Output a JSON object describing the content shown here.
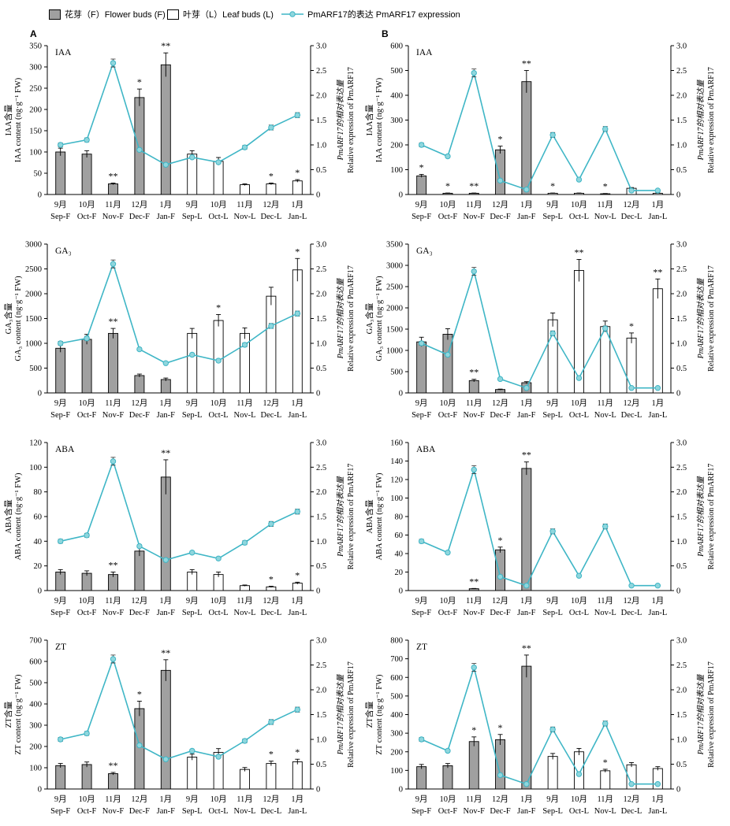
{
  "legend": {
    "flower_label": "花芽（F）Flower buds (F)",
    "leaf_label": "叶芽（L）Leaf buds (L)",
    "expr_label": "PmARF17的表达  PmARF17 expression"
  },
  "panel_labels": {
    "a": "A",
    "b": "B"
  },
  "colors": {
    "flower_fill": "#a0a0a0",
    "leaf_fill": "#ffffff",
    "line": "#3fb6c6",
    "marker_fill": "#8fd6dd"
  },
  "chart_data": [
    {
      "type": "bar+line",
      "panel": "A",
      "tag": "IAA",
      "ylabel_zh": "IAA含量",
      "ylabel_en": "IAA content (ng·g⁻¹ FW)",
      "y2label_zh": "PmARF17的相对表达量",
      "y2label_en": "Relative expression of PmARF17",
      "ylim": [
        0,
        350
      ],
      "yticks": [
        0,
        50,
        100,
        150,
        200,
        250,
        300,
        350
      ],
      "y2lim": [
        0,
        3.0
      ],
      "y2ticks": [
        "0",
        "0.5",
        "1.0",
        "1.5",
        "2.0",
        "2.5",
        "3.0"
      ],
      "xtick_top": [
        "9月",
        "10月",
        "11月",
        "12月",
        "1月",
        "9月",
        "10月",
        "11月",
        "12月",
        "1月"
      ],
      "xtick_bottom": [
        "Sep-F",
        "Oct-F",
        "Nov-F",
        "Dec-F",
        "Jan-F",
        "Sep-L",
        "Oct-L",
        "Nov-L",
        "Dec-L",
        "Jan-L"
      ],
      "bars": [
        100,
        95,
        25,
        228,
        305,
        95,
        78,
        23,
        25,
        32
      ],
      "bar_err": [
        9,
        8,
        2,
        20,
        28,
        8,
        9,
        2,
        2,
        3
      ],
      "expression": [
        1.0,
        1.1,
        2.65,
        0.9,
        0.6,
        0.75,
        0.65,
        0.95,
        1.35,
        1.6
      ],
      "expr_err": [
        0.04,
        0.04,
        0.08,
        0.03,
        0.02,
        0.03,
        0.03,
        0.04,
        0.05,
        0.05
      ],
      "significance": [
        "",
        "",
        "**",
        "*",
        "**",
        "",
        "",
        "",
        "*",
        "*"
      ]
    },
    {
      "type": "bar+line",
      "panel": "B",
      "tag": "IAA",
      "ylabel_zh": "IAA含量",
      "ylabel_en": "IAA content (ng·g⁻¹ FW)",
      "y2label_zh": "PmARF17的相对表达量",
      "y2label_en": "Relative expression of PmARF17",
      "ylim": [
        0,
        600
      ],
      "yticks": [
        0,
        100,
        200,
        300,
        400,
        500,
        600
      ],
      "y2lim": [
        0,
        3.0
      ],
      "y2ticks": [
        "0",
        "0.5",
        "1.0",
        "1.5",
        "2.0",
        "2.5",
        "3.0"
      ],
      "xtick_top": [
        "9月",
        "10月",
        "11月",
        "12月",
        "1月",
        "9月",
        "10月",
        "11月",
        "12月",
        "1月"
      ],
      "xtick_bottom": [
        "Sep-F",
        "Oct-F",
        "Nov-F",
        "Dec-F",
        "Jan-F",
        "Sep-L",
        "Oct-L",
        "Nov-L",
        "Dec-L",
        "Jan-L"
      ],
      "bars": [
        75,
        5,
        5,
        180,
        455,
        5,
        5,
        3,
        25,
        5
      ],
      "bar_err": [
        6,
        1,
        1,
        15,
        45,
        1,
        1,
        1,
        3,
        1
      ],
      "expression": [
        1.0,
        0.77,
        2.45,
        0.28,
        0.1,
        1.2,
        0.3,
        1.32,
        0.08,
        0.08
      ],
      "expr_err": [
        0.04,
        0.03,
        0.08,
        0.02,
        0.02,
        0.05,
        0.02,
        0.05,
        0.01,
        0.01
      ],
      "significance": [
        "*",
        "*",
        "**",
        "*",
        "**",
        "*",
        "",
        "*",
        "",
        ""
      ]
    },
    {
      "type": "bar+line",
      "panel": "A",
      "tag": "GA₃",
      "ylabel_zh": "GA₃含量",
      "ylabel_en": "GA₃ content (ng·g⁻¹ FW)",
      "y2label_zh": "PmARF17的相对表达量",
      "y2label_en": "Relative expression of PmARF17",
      "ylim": [
        0,
        3000
      ],
      "yticks": [
        0,
        500,
        1000,
        1500,
        2000,
        2500,
        3000
      ],
      "y2lim": [
        0,
        3.0
      ],
      "y2ticks": [
        "0",
        "0.5",
        "1.0",
        "1.5",
        "2.0",
        "2.5",
        "3.0"
      ],
      "xtick_top": [
        "9月",
        "10月",
        "11月",
        "12月",
        "1月",
        "9月",
        "10月",
        "11月",
        "12月",
        "1月"
      ],
      "xtick_bottom": [
        "Sep-F",
        "Oct-F",
        "Nov-F",
        "Dec-F",
        "Jan-F",
        "Sep-L",
        "Oct-L",
        "Nov-L",
        "Dec-L",
        "Jan-L"
      ],
      "bars": [
        900,
        1080,
        1200,
        350,
        270,
        1200,
        1460,
        1200,
        1950,
        2480
      ],
      "bar_err": [
        80,
        100,
        100,
        30,
        30,
        100,
        120,
        110,
        180,
        230
      ],
      "expression": [
        1.0,
        1.1,
        2.6,
        0.88,
        0.6,
        0.77,
        0.65,
        0.97,
        1.35,
        1.6
      ],
      "expr_err": [
        0.04,
        0.04,
        0.08,
        0.03,
        0.02,
        0.03,
        0.03,
        0.04,
        0.05,
        0.05
      ],
      "significance": [
        "",
        "",
        "**",
        "",
        "",
        "",
        "*",
        "",
        "",
        "*"
      ]
    },
    {
      "type": "bar+line",
      "panel": "B",
      "tag": "GA₃",
      "ylabel_zh": "GA₃含量",
      "ylabel_en": "GA₃ content (ng·g⁻¹ FW)",
      "y2label_zh": "PmARF17的相对表达量",
      "y2label_en": "Relative expression of PmARF17",
      "ylim": [
        0,
        3500
      ],
      "yticks": [
        0,
        500,
        1000,
        1500,
        2000,
        2500,
        3000,
        3500
      ],
      "y2lim": [
        0,
        3.0
      ],
      "y2ticks": [
        "0",
        "0.5",
        "1.0",
        "1.5",
        "2.0",
        "2.5",
        "3.0"
      ],
      "xtick_top": [
        "9月",
        "10月",
        "11月",
        "12月",
        "1月",
        "9月",
        "10月",
        "11月",
        "12月",
        "1月"
      ],
      "xtick_bottom": [
        "Sep-F",
        "Oct-F",
        "Nov-F",
        "Dec-F",
        "Jan-F",
        "Sep-L",
        "Oct-L",
        "Nov-L",
        "Dec-L",
        "Jan-L"
      ],
      "bars": [
        1200,
        1380,
        290,
        80,
        240,
        1720,
        2880,
        1560,
        1290,
        2450
      ],
      "bar_err": [
        110,
        130,
        30,
        10,
        25,
        160,
        260,
        130,
        120,
        230
      ],
      "expression": [
        1.0,
        0.77,
        2.45,
        0.28,
        0.1,
        1.2,
        0.3,
        1.3,
        0.1,
        0.1
      ],
      "expr_err": [
        0.04,
        0.03,
        0.08,
        0.02,
        0.02,
        0.05,
        0.02,
        0.05,
        0.01,
        0.01
      ],
      "significance": [
        "",
        "",
        "**",
        "",
        "",
        "",
        "**",
        "",
        "*",
        "**"
      ]
    },
    {
      "type": "bar+line",
      "panel": "A",
      "tag": "ABA",
      "ylabel_zh": "ABA含量",
      "ylabel_en": "ABA content (ng·g⁻¹ FW)",
      "y2label_zh": "PmARF17的相对表达量",
      "y2label_en": "Relative expression of PmARF17",
      "ylim": [
        0,
        120
      ],
      "yticks": [
        0,
        20,
        40,
        60,
        80,
        100,
        120
      ],
      "y2lim": [
        0,
        3.0
      ],
      "y2ticks": [
        "0",
        "0.5",
        "1.0",
        "1.5",
        "2.0",
        "2.5",
        "3.0"
      ],
      "xtick_top": [
        "9月",
        "10月",
        "11月",
        "12月",
        "1月",
        "9月",
        "10月",
        "11月",
        "12月",
        "1月"
      ],
      "xtick_bottom": [
        "Sep-F",
        "Oct-F",
        "Nov-F",
        "Dec-F",
        "Jan-F",
        "Sep-L",
        "Oct-L",
        "Nov-L",
        "Dec-L",
        "Jan-L"
      ],
      "bars": [
        15,
        14,
        13,
        32,
        92,
        15,
        13,
        4,
        3,
        6
      ],
      "bar_err": [
        2,
        2,
        2,
        4,
        14,
        2,
        2,
        0.5,
        0.5,
        0.8
      ],
      "expression": [
        1.0,
        1.12,
        2.62,
        0.9,
        0.62,
        0.77,
        0.65,
        0.97,
        1.35,
        1.6
      ],
      "expr_err": [
        0.04,
        0.04,
        0.08,
        0.03,
        0.02,
        0.03,
        0.03,
        0.04,
        0.05,
        0.05
      ],
      "significance": [
        "",
        "",
        "**",
        "",
        "**",
        "",
        "",
        "",
        "*",
        "*"
      ]
    },
    {
      "type": "bar+line",
      "panel": "B",
      "tag": "ABA",
      "ylabel_zh": "ABA含量",
      "ylabel_en": "ABA content (ng·g⁻¹ FW)",
      "y2label_zh": "PmARF17的相对表达量",
      "y2label_en": "Relative expression of PmARF17",
      "ylim": [
        0,
        160
      ],
      "yticks": [
        0,
        20,
        40,
        60,
        80,
        100,
        120,
        140,
        160
      ],
      "y2lim": [
        0,
        3.0
      ],
      "y2ticks": [
        "0",
        "0.5",
        "1.0",
        "1.5",
        "2.0",
        "2.5",
        "3.0"
      ],
      "xtick_top": [
        "9月",
        "10月",
        "11月",
        "12月",
        "1月",
        "9月",
        "10月",
        "11月",
        "12月",
        "1月"
      ],
      "xtick_bottom": [
        "Sep-F",
        "Oct-F",
        "Nov-F",
        "Dec-F",
        "Jan-F",
        "Sep-L",
        "Oct-L",
        "Nov-L",
        "Dec-L",
        "Jan-L"
      ],
      "bars": [
        0,
        0,
        2,
        44,
        132,
        0,
        0,
        0,
        0,
        0
      ],
      "bar_err": [
        0,
        0,
        0.3,
        3,
        7,
        0,
        0,
        0,
        0,
        0
      ],
      "expression": [
        1.0,
        0.77,
        2.45,
        0.28,
        0.1,
        1.2,
        0.3,
        1.3,
        0.1,
        0.1
      ],
      "expr_err": [
        0.04,
        0.03,
        0.08,
        0.02,
        0.02,
        0.05,
        0.02,
        0.05,
        0.01,
        0.01
      ],
      "significance": [
        "",
        "",
        "**",
        "*",
        "**",
        "",
        "",
        "",
        "",
        ""
      ]
    },
    {
      "type": "bar+line",
      "panel": "A",
      "tag": "ZT",
      "ylabel_zh": "ZT含量",
      "ylabel_en": "ZT content (ng·g⁻¹ FW)",
      "y2label_zh": "PmARF17的相对表达量",
      "y2label_en": "Relative expression of PmARF17",
      "ylim": [
        0,
        700
      ],
      "yticks": [
        0,
        100,
        200,
        300,
        400,
        500,
        600,
        700
      ],
      "y2lim": [
        0,
        3.0
      ],
      "y2ticks": [
        "0",
        "0.5",
        "1.0",
        "1.5",
        "2.0",
        "2.5",
        "3.0"
      ],
      "xtick_top": [
        "9月",
        "10月",
        "11月",
        "12月",
        "1月",
        "9月",
        "10月",
        "11月",
        "12月",
        "1月"
      ],
      "xtick_bottom": [
        "Sep-F",
        "Oct-F",
        "Nov-F",
        "Dec-F",
        "Jan-F",
        "Sep-L",
        "Oct-L",
        "Nov-L",
        "Dec-L",
        "Jan-L"
      ],
      "bars": [
        110,
        115,
        72,
        378,
        558,
        150,
        172,
        92,
        120,
        128
      ],
      "bar_err": [
        10,
        12,
        6,
        35,
        50,
        14,
        18,
        9,
        11,
        12
      ],
      "expression": [
        1.0,
        1.12,
        2.62,
        0.88,
        0.6,
        0.77,
        0.65,
        0.97,
        1.35,
        1.6
      ],
      "expr_err": [
        0.04,
        0.04,
        0.08,
        0.03,
        0.02,
        0.03,
        0.03,
        0.04,
        0.05,
        0.05
      ],
      "significance": [
        "",
        "",
        "**",
        "*",
        "**",
        "",
        "",
        "",
        "*",
        "*"
      ]
    },
    {
      "type": "bar+line",
      "panel": "B",
      "tag": "ZT",
      "ylabel_zh": "ZT含量",
      "ylabel_en": "ZT content (ng·g⁻¹ FW)",
      "y2label_zh": "PmARF17的相对表达量",
      "y2label_en": "Relative expression of PmARF17",
      "ylim": [
        0,
        800
      ],
      "yticks": [
        0,
        100,
        200,
        300,
        400,
        500,
        600,
        700,
        800
      ],
      "y2lim": [
        0,
        3.0
      ],
      "y2ticks": [
        "0",
        "0.5",
        "1.0",
        "1.5",
        "2.0",
        "2.5",
        "3.0"
      ],
      "xtick_top": [
        "9月",
        "10月",
        "11月",
        "12月",
        "1月",
        "9月",
        "10月",
        "11月",
        "12月",
        "1月"
      ],
      "xtick_bottom": [
        "Sep-F",
        "Oct-F",
        "Nov-F",
        "Dec-F",
        "Jan-F",
        "Sep-L",
        "Oct-L",
        "Nov-L",
        "Dec-L",
        "Jan-L"
      ],
      "bars": [
        120,
        125,
        255,
        265,
        660,
        175,
        200,
        98,
        130,
        110
      ],
      "bar_err": [
        12,
        12,
        25,
        28,
        60,
        16,
        18,
        8,
        12,
        10
      ],
      "expression": [
        1.0,
        0.77,
        2.45,
        0.28,
        0.1,
        1.2,
        0.3,
        1.32,
        0.1,
        0.1
      ],
      "expr_err": [
        0.04,
        0.03,
        0.08,
        0.02,
        0.02,
        0.05,
        0.02,
        0.05,
        0.01,
        0.01
      ],
      "significance": [
        "",
        "",
        "*",
        "*",
        "**",
        "",
        "",
        "*",
        "",
        ""
      ]
    }
  ]
}
